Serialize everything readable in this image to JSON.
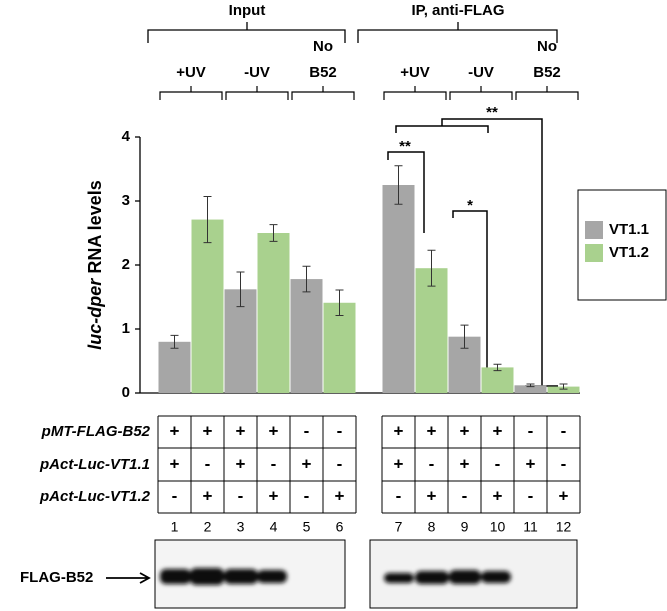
{
  "chart_data": {
    "type": "bar",
    "group_titles": [
      "Input",
      "IP, anti-FLAG"
    ],
    "ylabel": {
      "italic": "luc-dper",
      "rest": "RNA levels"
    },
    "categories": [
      "+UV",
      "-UV",
      "No B52",
      "+UV",
      "-UV",
      "No B52"
    ],
    "series": [
      {
        "name": "VT1.1",
        "color": "#a6a6a6",
        "values": [
          0.8,
          1.62,
          1.78,
          3.25,
          0.88,
          0.12
        ],
        "errors": [
          0.1,
          0.27,
          0.2,
          0.3,
          0.18,
          0.02
        ]
      },
      {
        "name": "VT1.2",
        "color": "#a9d18e",
        "values": [
          2.71,
          2.5,
          1.41,
          1.95,
          0.4,
          0.1
        ],
        "errors": [
          0.36,
          0.13,
          0.2,
          0.28,
          0.05,
          0.04
        ]
      }
    ],
    "ylim": [
      0,
      4
    ],
    "yticks": [
      0,
      1,
      2,
      3,
      4
    ],
    "annotations": [
      "**",
      "*",
      "**"
    ]
  },
  "table": {
    "rows": [
      {
        "label": "pMT-FLAG-B52",
        "cells": [
          "+",
          "+",
          "+",
          "+",
          "-",
          "-",
          "+",
          "+",
          "+",
          "+",
          "-",
          "-"
        ]
      },
      {
        "label": "pAct-Luc-VT1.1",
        "cells": [
          "+",
          "-",
          "+",
          "-",
          "+",
          "-",
          "+",
          "-",
          "+",
          "-",
          "+",
          "-"
        ]
      },
      {
        "label": "pAct-Luc-VT1.2",
        "cells": [
          "-",
          "+",
          "-",
          "+",
          "-",
          "+",
          "-",
          "+",
          "-",
          "+",
          "-",
          "+"
        ]
      }
    ],
    "lanes": [
      "1",
      "2",
      "3",
      "4",
      "5",
      "6",
      "7",
      "8",
      "9",
      "10",
      "11",
      "12"
    ]
  },
  "blot": {
    "label": "FLAG-B52"
  }
}
